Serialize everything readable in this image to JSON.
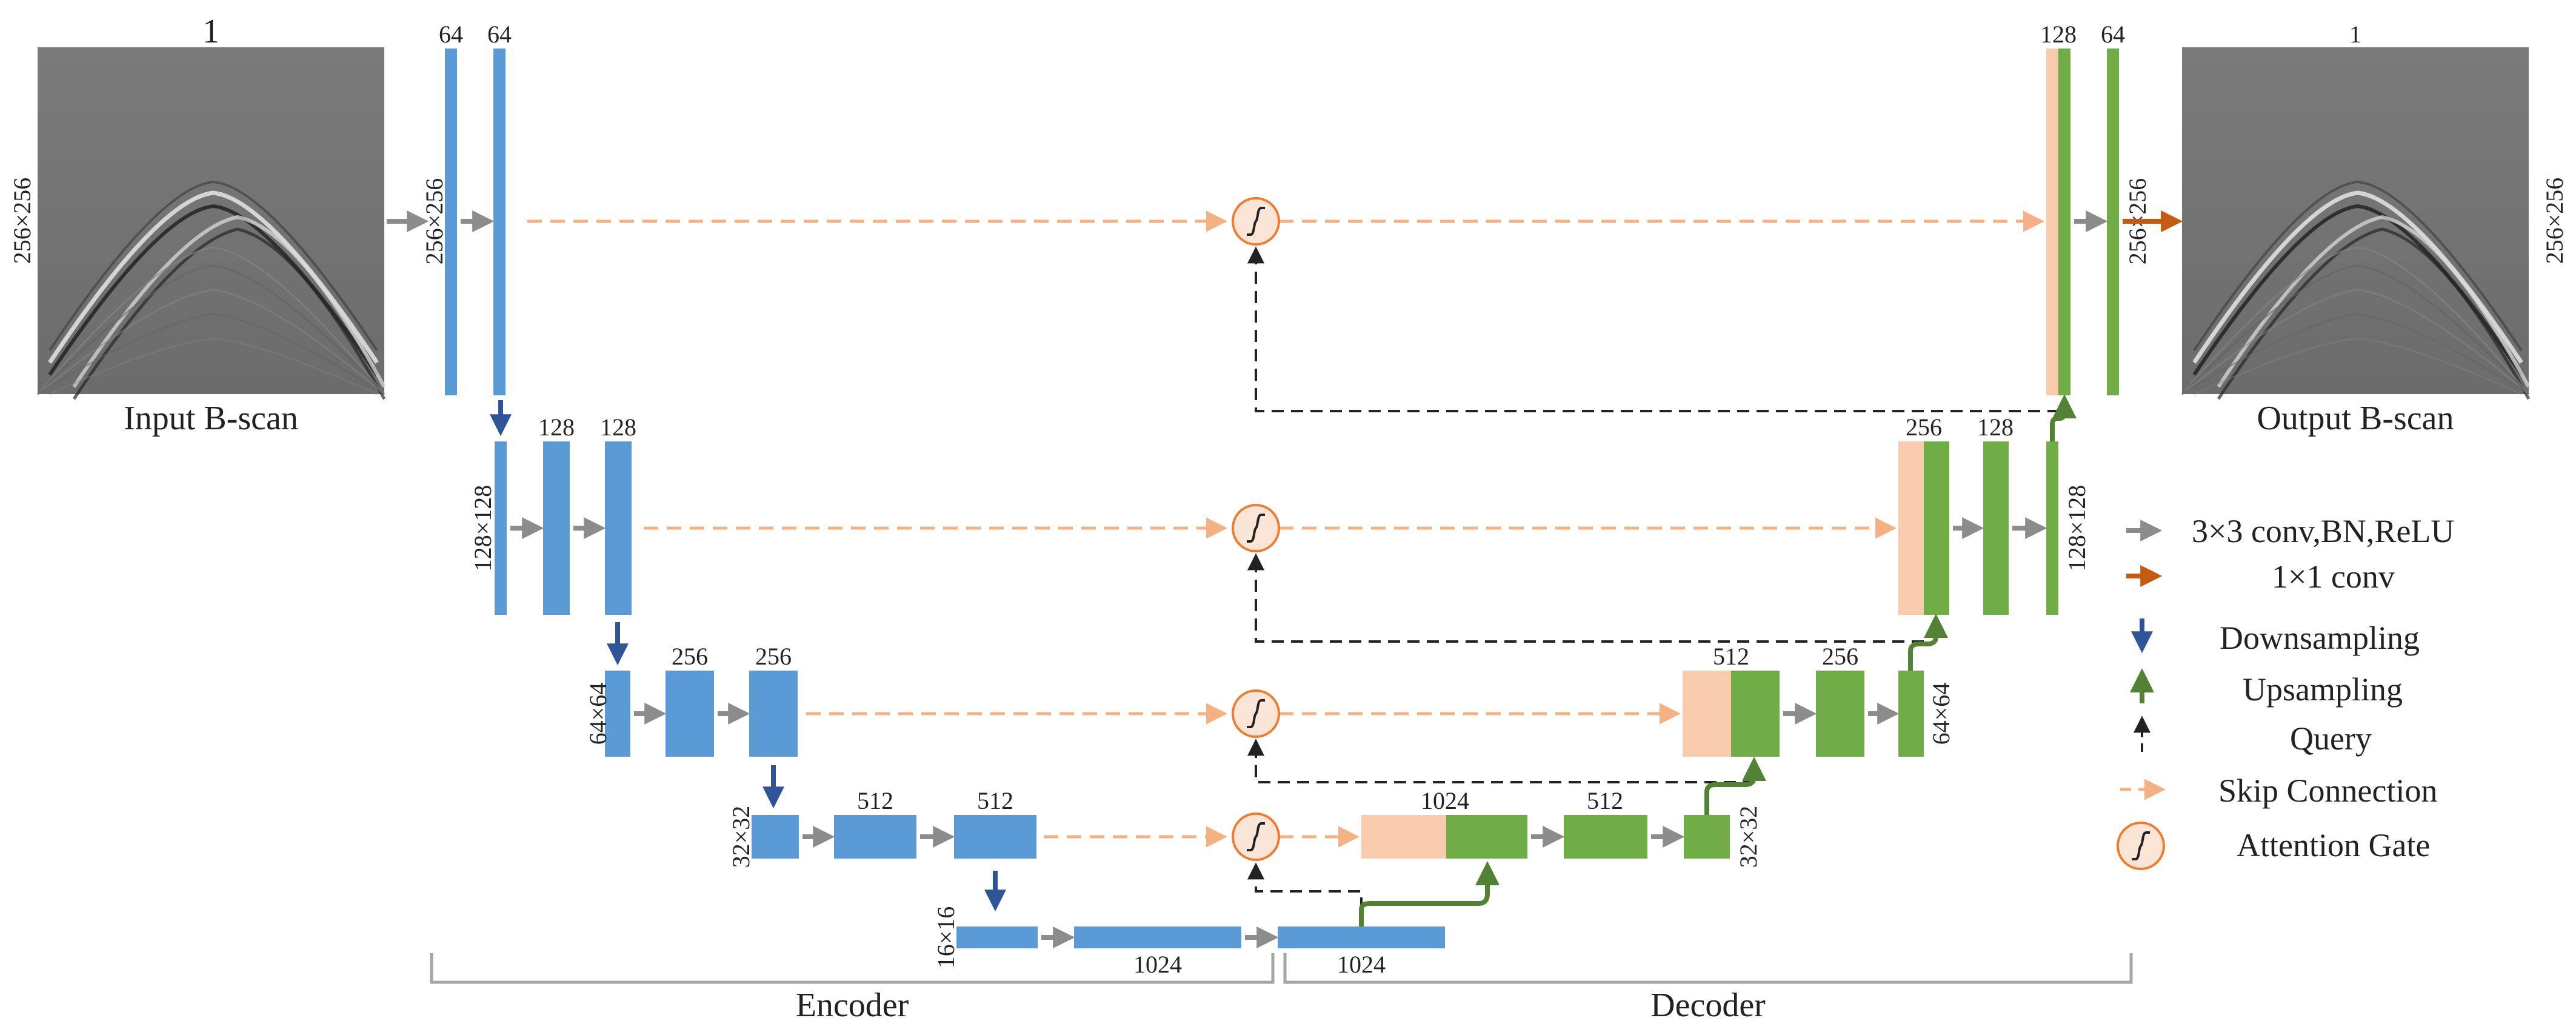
{
  "colors": {
    "encoder": "#5b9bd5",
    "decoder": "#70ad47",
    "skip_block": "#f8cbad",
    "conv_arrow": "#8c8c8c",
    "conv1x1_arrow": "#c55a11",
    "downsample_arrow": "#2f5597",
    "upsample_arrow": "#548235",
    "query_arrow": "#222222",
    "skip_arrow": "#f4b183",
    "gate_fill": "#fbe5d6",
    "gate_stroke": "#ed7d31",
    "bracket": "#a6a6a6"
  },
  "images": {
    "input": {
      "caption": "Input B-scan",
      "channels": "1",
      "size": "256×256"
    },
    "output": {
      "caption": "Output B-scan",
      "channels": "1",
      "size": "256×256"
    }
  },
  "encoder": {
    "level1": {
      "ch_a": "64",
      "ch_b": "64",
      "size": "256×256"
    },
    "level2": {
      "ch_a": "128",
      "ch_b": "128",
      "size": "128×128"
    },
    "level3": {
      "ch_a": "256",
      "ch_b": "256",
      "size": "64×64"
    },
    "level4": {
      "ch_a": "512",
      "ch_b": "512",
      "size": "32×32"
    },
    "bottleneck": {
      "ch": "1024",
      "size": "16×16"
    }
  },
  "decoder": {
    "level4": {
      "ch_up": "1024",
      "ch_conv": "512",
      "size": "32×32"
    },
    "level3": {
      "ch_up": "512",
      "ch_conv": "256",
      "size": "64×64"
    },
    "level2": {
      "ch_up": "256",
      "ch_conv": "128",
      "size": "128×128"
    },
    "level1": {
      "ch_up": "128",
      "ch_conv": "64",
      "size": "256×256"
    },
    "bottleneck_out": {
      "ch": "1024"
    }
  },
  "sections": {
    "encoder": "Encoder",
    "decoder": "Decoder"
  },
  "legend": {
    "conv": "3×3 conv,BN,ReLU",
    "conv1x1": "1×1 conv",
    "down": "Downsampling",
    "up": "Upsampling",
    "query": "Query",
    "skip": "Skip Connection",
    "gate": "Attention Gate"
  }
}
